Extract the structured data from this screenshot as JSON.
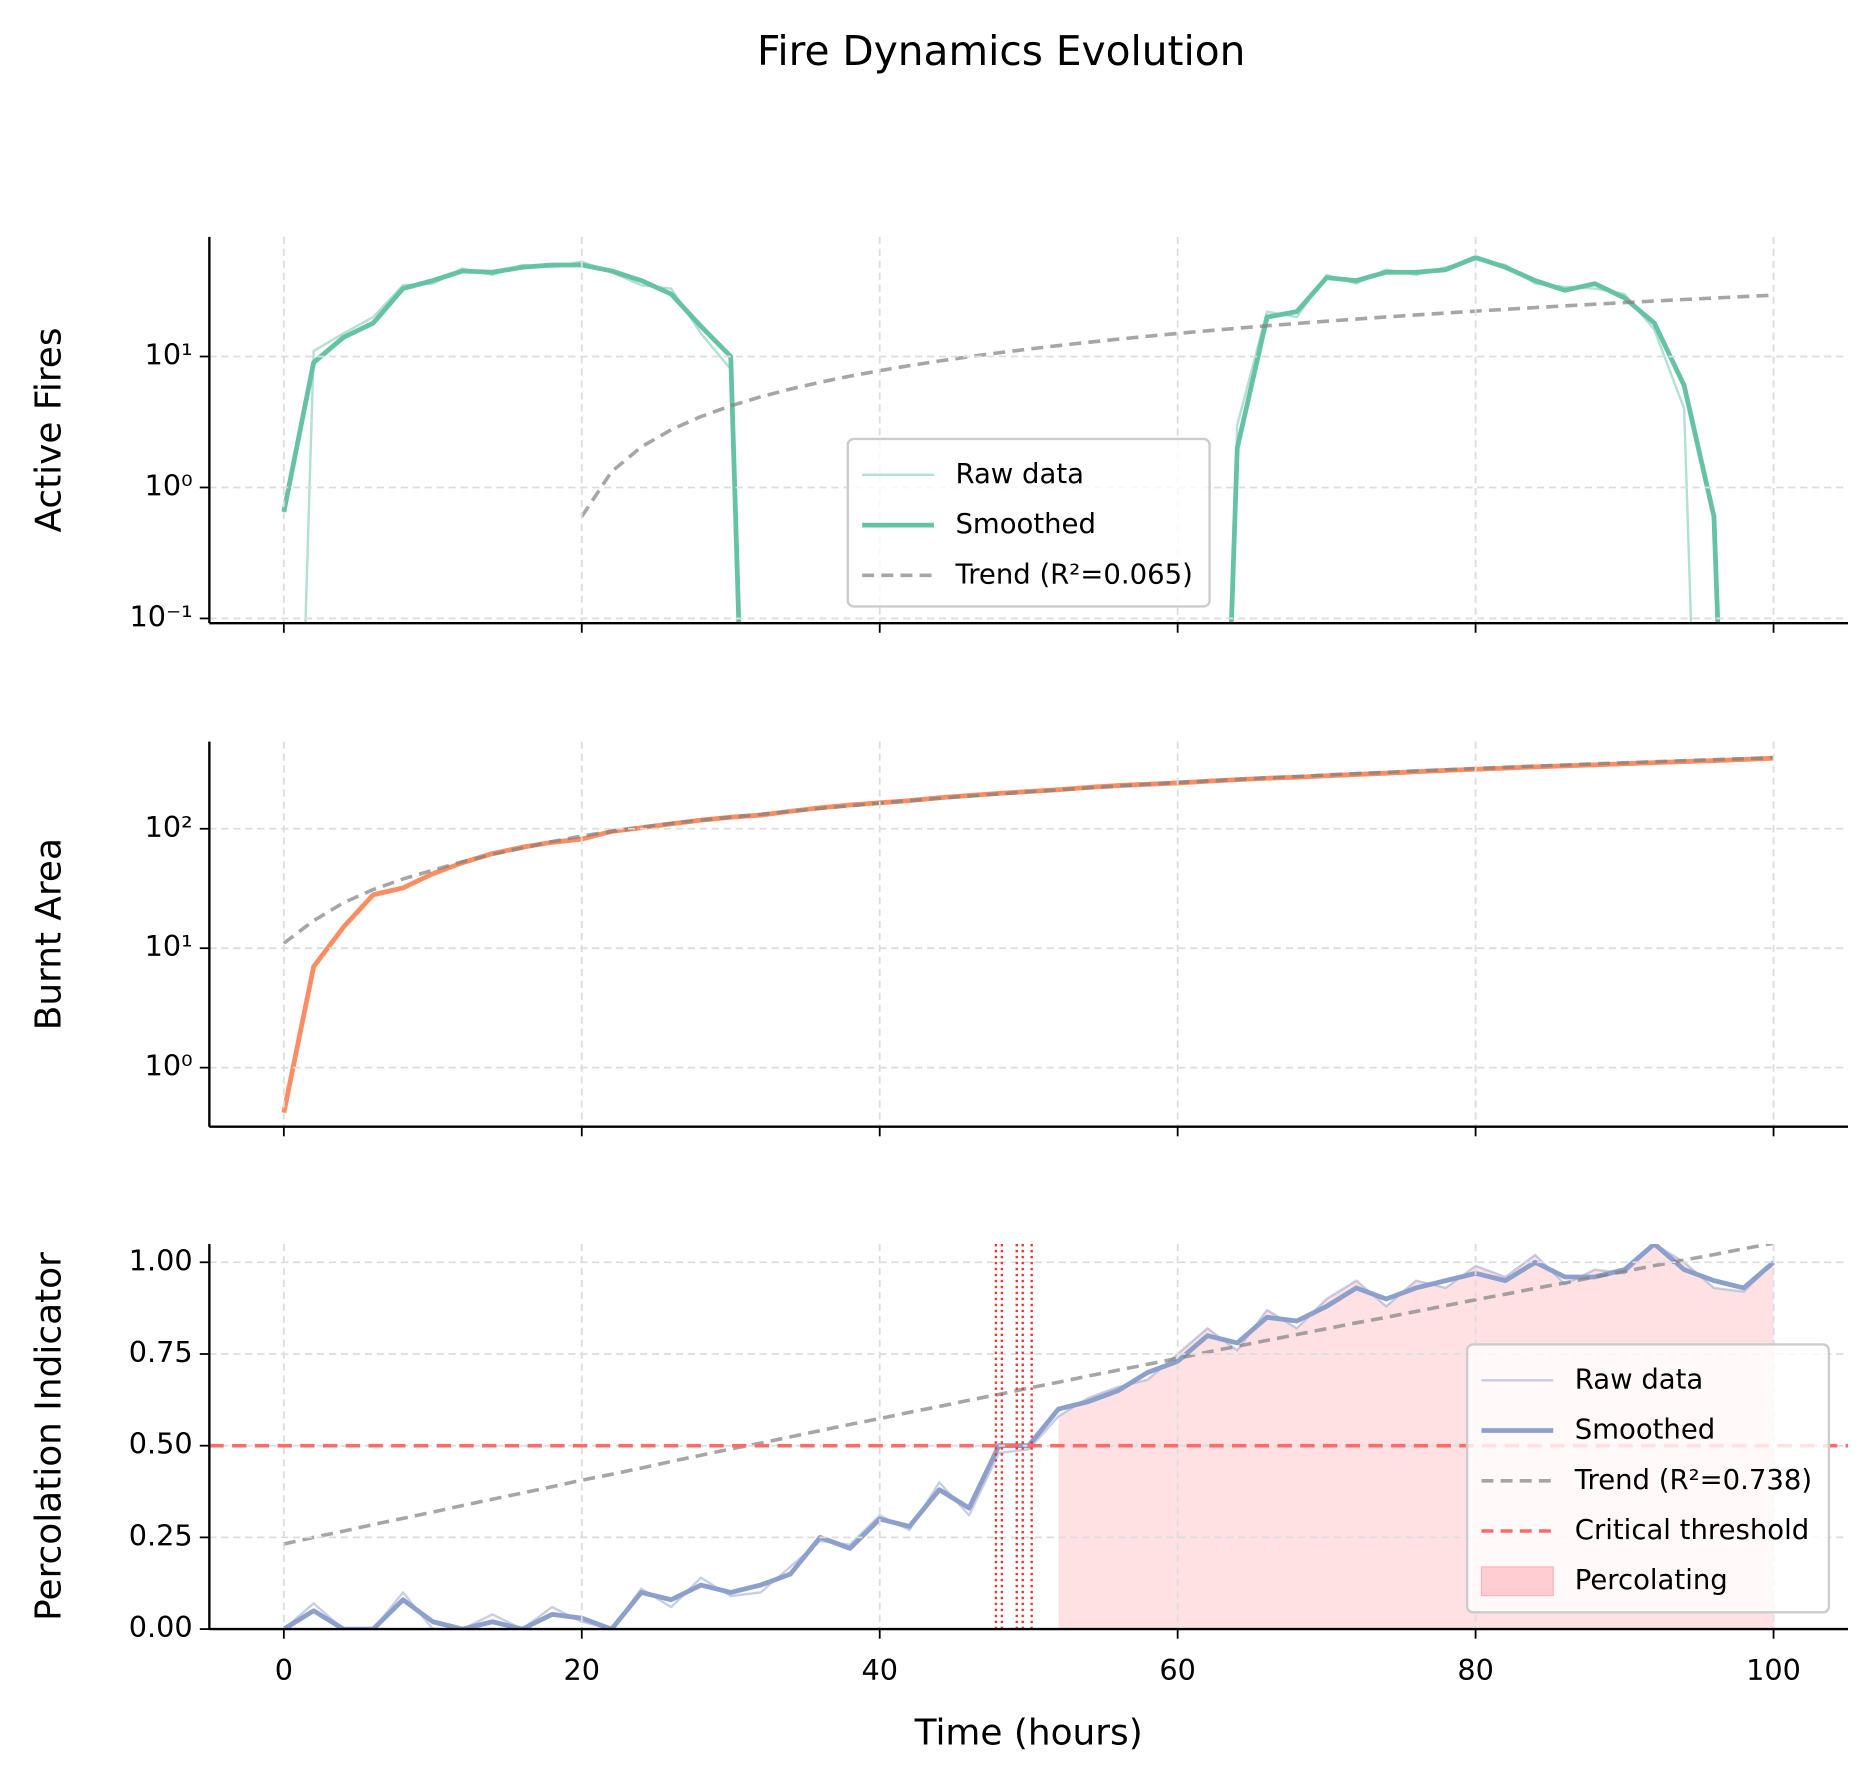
{
  "title": "Fire Dynamics Evolution",
  "chart_data": [
    {
      "type": "line",
      "ylabel": "Active Fires",
      "yscale": "log",
      "grid": true,
      "legend": "lower center",
      "ylim": [
        0.092,
        82
      ],
      "yticks": [
        {
          "value": 0.1,
          "label": "10⁻¹"
        },
        {
          "value": 1,
          "label": "10⁰"
        },
        {
          "value": 10,
          "label": "10¹"
        }
      ],
      "x": [
        0,
        2,
        4,
        6,
        8,
        10,
        12,
        14,
        16,
        18,
        20,
        22,
        24,
        26,
        28,
        30,
        32,
        34,
        36,
        38,
        40,
        42,
        44,
        46,
        48,
        50,
        52,
        54,
        56,
        58,
        60,
        62,
        64,
        66,
        68,
        70,
        72,
        74,
        76,
        78,
        80,
        82,
        84,
        86,
        88,
        90,
        92,
        94,
        96,
        98,
        100
      ],
      "series": [
        {
          "name": "Raw data",
          "color": "#66c2a5",
          "linewidth": 2,
          "alpha": 0.5,
          "values": [
            0,
            11,
            15,
            20,
            35,
            36,
            47,
            42,
            50,
            48,
            53,
            44,
            35,
            33,
            15,
            8,
            0,
            0,
            0,
            0,
            0,
            0,
            0,
            0,
            0,
            0,
            0,
            0,
            0,
            0,
            0,
            0,
            3,
            22,
            20,
            42,
            36,
            46,
            42,
            48,
            55,
            50,
            36,
            34,
            33,
            30,
            16,
            4,
            0,
            0,
            0
          ]
        },
        {
          "name": "Smoothed",
          "color": "#66c2a5",
          "linewidth": 4,
          "alpha": 1,
          "values": [
            0.65,
            9,
            14,
            18,
            33,
            38,
            45,
            44,
            48,
            50,
            50,
            45,
            38,
            30,
            17,
            10,
            0,
            0,
            0,
            0,
            0,
            0,
            0,
            0,
            0,
            0,
            0,
            0,
            0,
            0,
            0,
            0,
            2,
            20,
            22,
            40,
            38,
            44,
            44,
            46,
            57,
            48,
            38,
            32,
            36,
            28,
            18,
            6,
            0.6,
            0,
            0
          ]
        },
        {
          "name": "Trend (R²=0.065)",
          "color": "#808080",
          "linewidth": 3,
          "alpha": 0.7,
          "linestyle": "dashed",
          "values": [
            null,
            null,
            null,
            null,
            null,
            null,
            null,
            null,
            null,
            null,
            0.6,
            1.32,
            2.04,
            2.76,
            3.48,
            4.2,
            4.92,
            5.64,
            6.36,
            7.08,
            7.8,
            8.52,
            9.24,
            9.96,
            10.68,
            11.4,
            12.12,
            12.84,
            13.56,
            14.28,
            15,
            15.72,
            16.44,
            17.16,
            17.88,
            18.6,
            19.32,
            20.04,
            20.76,
            21.48,
            22.2,
            22.92,
            23.64,
            24.36,
            25.08,
            25.8,
            26.52,
            27.24,
            27.96,
            28.68,
            29.4
          ]
        }
      ]
    },
    {
      "type": "line",
      "ylabel": "Burnt Area",
      "yscale": "log",
      "grid": true,
      "ylim": [
        0.32,
        537
      ],
      "yticks": [
        {
          "value": 1,
          "label": "10⁰"
        },
        {
          "value": 10,
          "label": "10¹"
        },
        {
          "value": 100,
          "label": "10²"
        }
      ],
      "x": [
        0,
        2,
        4,
        6,
        8,
        10,
        12,
        14,
        16,
        18,
        20,
        22,
        24,
        26,
        28,
        30,
        32,
        34,
        36,
        38,
        40,
        42,
        44,
        46,
        48,
        50,
        52,
        54,
        56,
        58,
        60,
        62,
        64,
        66,
        68,
        70,
        72,
        74,
        76,
        78,
        80,
        82,
        84,
        86,
        88,
        90,
        92,
        94,
        96,
        98,
        100
      ],
      "series": [
        {
          "color": "#fc8d62",
          "linewidth": 4,
          "alpha": 1,
          "values": [
            0.42,
            7,
            15,
            28,
            32,
            42,
            52,
            62,
            70,
            77,
            82,
            95,
            102,
            110,
            118,
            125,
            130,
            140,
            150,
            158,
            165,
            172,
            182,
            190,
            198,
            205,
            212,
            222,
            230,
            236,
            242,
            250,
            258,
            265,
            270,
            278,
            285,
            292,
            300,
            308,
            315,
            322,
            330,
            336,
            343,
            350,
            358,
            365,
            372,
            380,
            390
          ]
        },
        {
          "color": "#808080",
          "linewidth": 3,
          "alpha": 0.7,
          "linestyle": "dashed",
          "values": [
            11,
            17,
            24,
            31,
            38,
            45,
            53,
            61,
            69,
            78,
            87,
            95,
            103,
            111,
            118,
            125,
            132,
            140,
            148,
            156,
            164,
            172,
            180,
            188,
            196,
            204,
            212,
            220,
            228,
            236,
            244,
            251,
            259,
            267,
            274,
            282,
            290,
            297,
            305,
            312,
            320,
            327,
            335,
            342,
            350,
            357,
            364,
            372,
            379,
            386,
            394
          ]
        }
      ]
    },
    {
      "type": "line",
      "ylabel": "Percolation Indicator",
      "xlabel": "Time (hours)",
      "grid": true,
      "legend": "lower right",
      "xlim": [
        -5,
        105
      ],
      "xticks": [
        0,
        20,
        40,
        60,
        80,
        100
      ],
      "ylim": [
        0,
        1.05
      ],
      "yticks": [
        {
          "value": 0,
          "label": "0.00"
        },
        {
          "value": 0.25,
          "label": "0.25"
        },
        {
          "value": 0.5,
          "label": "0.50"
        },
        {
          "value": 0.75,
          "label": "0.75"
        },
        {
          "value": 1,
          "label": "1.00"
        }
      ],
      "x": [
        0,
        2,
        4,
        6,
        8,
        10,
        12,
        14,
        16,
        18,
        20,
        22,
        24,
        26,
        28,
        30,
        32,
        34,
        36,
        38,
        40,
        42,
        44,
        46,
        48,
        50,
        52,
        54,
        56,
        58,
        60,
        62,
        64,
        66,
        68,
        70,
        72,
        74,
        76,
        78,
        80,
        82,
        84,
        86,
        88,
        90,
        92,
        94,
        96,
        98,
        100
      ],
      "series": [
        {
          "name": "Raw data",
          "color": "#8da0cb",
          "linewidth": 2,
          "alpha": 0.5,
          "values": [
            0,
            0.07,
            0,
            0,
            0.1,
            0,
            0,
            0.04,
            0,
            0.06,
            0.02,
            0,
            0.11,
            0.06,
            0.14,
            0.09,
            0.1,
            0.17,
            0.24,
            0.23,
            0.31,
            0.27,
            0.4,
            0.31,
            0.48,
            0.49,
            0.58,
            0.63,
            0.66,
            0.68,
            0.75,
            0.82,
            0.76,
            0.87,
            0.82,
            0.9,
            0.95,
            0.88,
            0.95,
            0.93,
            0.99,
            0.96,
            1.02,
            0.94,
            0.98,
            0.97,
            1.05,
            1.0,
            0.93,
            0.92,
            1.0
          ]
        },
        {
          "name": "Smoothed",
          "color": "#8da0cb",
          "linewidth": 4,
          "alpha": 1,
          "values": [
            0,
            0.05,
            0,
            0,
            0.08,
            0.02,
            0,
            0.02,
            0,
            0.04,
            0.03,
            0,
            0.1,
            0.08,
            0.12,
            0.1,
            0.12,
            0.15,
            0.25,
            0.22,
            0.3,
            0.28,
            0.38,
            0.33,
            0.5,
            0.5,
            0.6,
            0.62,
            0.65,
            0.7,
            0.73,
            0.8,
            0.78,
            0.85,
            0.84,
            0.88,
            0.93,
            0.9,
            0.93,
            0.95,
            0.97,
            0.95,
            1.0,
            0.96,
            0.96,
            0.98,
            1.05,
            0.98,
            0.95,
            0.93,
            1.0
          ]
        },
        {
          "name": "Trend (R²=0.738)",
          "color": "#808080",
          "linewidth": 3,
          "alpha": 0.7,
          "linestyle": "dashed",
          "values": [
            0.232,
            0.25,
            0.267,
            0.285,
            0.302,
            0.319,
            0.337,
            0.354,
            0.371,
            0.388,
            0.406,
            0.422,
            0.439,
            0.457,
            0.474,
            0.491,
            0.507,
            0.524,
            0.541,
            0.558,
            0.574,
            0.591,
            0.607,
            0.624,
            0.64,
            0.657,
            0.673,
            0.69,
            0.706,
            0.722,
            0.738,
            0.755,
            0.771,
            0.787,
            0.803,
            0.819,
            0.835,
            0.85,
            0.866,
            0.882,
            0.898,
            0.913,
            0.929,
            0.944,
            0.96,
            0.975,
            0.991,
            1.006,
            1.021,
            1.037,
            1.052
          ]
        }
      ],
      "threshold": {
        "name": "Critical threshold",
        "value": 0.5,
        "color": "#ff6b6b"
      },
      "crossings": [
        47.8,
        48.2,
        49.2,
        49.6,
        50.2
      ],
      "fill": {
        "name": "Percolating",
        "color": "#ffcdd2"
      }
    }
  ]
}
